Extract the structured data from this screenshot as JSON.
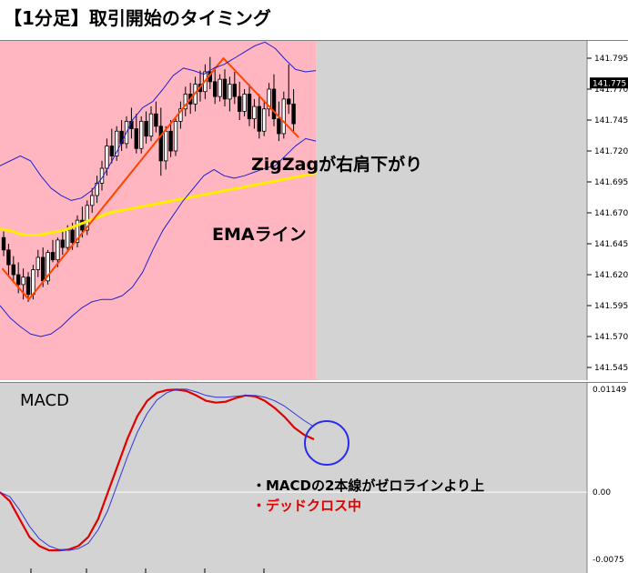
{
  "title": "【1分足】取引開始のタイミング",
  "annotations": {
    "zigzag_label": "ZigZagが右肩下がり",
    "ema_label": "EMAライン",
    "macd_title": "MACD",
    "note_lines_above_zero": "・MACDの2本線がゼロラインより上",
    "note_dead_cross": "・デッドクロス中"
  },
  "colors": {
    "price_highlight": "#ffb6c1",
    "chart_bg": "#d3d3d3",
    "bollinger": "#2020cc",
    "zigzag": "#ff4500",
    "ema": "#ffee00",
    "macd_main": "#e00000",
    "macd_signal": "#3333dd",
    "circle": "#2a2aee",
    "note_red": "#e00000"
  },
  "chart_data": [
    {
      "type": "line",
      "panel": "price",
      "ylim": [
        141.54,
        141.805
      ],
      "y_ticks": [
        "141.795",
        "141.770",
        "141.745",
        "141.720",
        "141.695",
        "141.670",
        "141.645",
        "141.620",
        "141.595",
        "141.570",
        "141.545"
      ],
      "current_price_label": "141.775",
      "current_price": 141.775,
      "bars": 70,
      "highlight_bars": [
        0,
        69
      ],
      "series": [
        {
          "id": "ema",
          "values": [
            141.657,
            141.656,
            141.655,
            141.653,
            141.652,
            141.652,
            141.652,
            141.653,
            141.654,
            141.655,
            141.656,
            141.658,
            141.66,
            141.662,
            141.664,
            141.666,
            141.668,
            141.67,
            141.671,
            141.672,
            141.673,
            141.674,
            141.675,
            141.676,
            141.677,
            141.678,
            141.679,
            141.68,
            141.681,
            141.682,
            141.683,
            141.684,
            141.685,
            141.686,
            141.687,
            141.688,
            141.689,
            141.69,
            141.691,
            141.692,
            141.693,
            141.694,
            141.695,
            141.696,
            141.697,
            141.698,
            141.699,
            141.7,
            141.701,
            141.702
          ]
        },
        {
          "id": "zigzag",
          "x": [
            0,
            6,
            50,
            67
          ],
          "values": [
            141.625,
            141.6,
            141.795,
            141.731
          ]
        },
        {
          "id": "bb_upper",
          "values": [
            141.708,
            141.712,
            141.716,
            141.712,
            141.7,
            141.69,
            141.684,
            141.68,
            141.682,
            141.688,
            141.698,
            141.712,
            141.728,
            141.745,
            141.755,
            141.76,
            141.77,
            141.781,
            141.787,
            141.785,
            141.782,
            141.787,
            141.79,
            141.795,
            141.8,
            141.805,
            141.808,
            141.803,
            141.794,
            141.786,
            141.784,
            141.785
          ]
        },
        {
          "id": "bb_lower",
          "values": [
            141.595,
            141.585,
            141.578,
            141.572,
            141.57,
            141.572,
            141.578,
            141.586,
            141.593,
            141.598,
            141.6,
            141.6,
            141.603,
            141.61,
            141.622,
            141.64,
            141.656,
            141.668,
            141.68,
            141.69,
            141.7,
            141.705,
            141.7,
            141.698,
            141.7,
            141.703,
            141.706,
            141.708,
            141.716,
            141.724,
            141.73,
            141.728
          ]
        }
      ],
      "candles": [
        [
          141.65,
          141.655,
          141.635,
          141.64
        ],
        [
          141.64,
          141.645,
          141.62,
          141.628
        ],
        [
          141.628,
          141.635,
          141.615,
          141.62
        ],
        [
          141.62,
          141.63,
          141.605,
          141.612
        ],
        [
          141.612,
          141.625,
          141.6,
          141.618
        ],
        [
          141.618,
          141.622,
          141.598,
          141.604
        ],
        [
          141.604,
          141.628,
          141.6,
          141.624
        ],
        [
          141.624,
          141.64,
          141.618,
          141.634
        ],
        [
          141.634,
          141.642,
          141.61,
          141.615
        ],
        [
          141.615,
          141.64,
          141.612,
          141.638
        ],
        [
          141.638,
          141.648,
          141.63,
          141.632
        ],
        [
          141.632,
          141.65,
          141.626,
          141.648
        ],
        [
          141.648,
          141.655,
          141.636,
          141.642
        ],
        [
          141.642,
          141.66,
          141.638,
          141.656
        ],
        [
          141.656,
          141.662,
          141.64,
          141.646
        ],
        [
          141.646,
          141.668,
          141.642,
          141.664
        ],
        [
          141.664,
          141.675,
          141.65,
          141.656
        ],
        [
          141.656,
          141.68,
          141.652,
          141.676
        ],
        [
          141.676,
          141.69,
          141.67,
          141.684
        ],
        [
          141.684,
          141.7,
          141.678,
          141.694
        ],
        [
          141.694,
          141.712,
          141.688,
          141.706
        ],
        [
          141.706,
          141.73,
          141.7,
          141.724
        ],
        [
          141.724,
          141.738,
          141.71,
          141.716
        ],
        [
          141.716,
          141.74,
          141.712,
          141.736
        ],
        [
          141.736,
          141.745,
          141.72,
          141.726
        ],
        [
          141.726,
          141.748,
          141.722,
          141.744
        ],
        [
          141.744,
          141.755,
          141.73,
          141.738
        ],
        [
          141.738,
          141.75,
          141.718,
          141.722
        ],
        [
          141.722,
          141.748,
          141.718,
          141.744
        ],
        [
          141.744,
          141.752,
          141.726,
          141.732
        ],
        [
          141.732,
          141.756,
          141.728,
          141.75
        ],
        [
          141.75,
          141.76,
          141.735,
          141.74
        ],
        [
          141.74,
          141.755,
          141.7,
          141.712
        ],
        [
          141.712,
          141.74,
          141.705,
          141.736
        ],
        [
          141.736,
          141.745,
          141.715,
          141.72
        ],
        [
          141.72,
          141.748,
          141.716,
          141.744
        ],
        [
          141.744,
          141.76,
          141.738,
          141.754
        ],
        [
          141.754,
          141.772,
          141.748,
          141.766
        ],
        [
          141.766,
          141.775,
          141.75,
          141.758
        ],
        [
          141.758,
          141.78,
          141.752,
          141.774
        ],
        [
          141.774,
          141.785,
          141.76,
          141.768
        ],
        [
          141.768,
          141.79,
          141.762,
          141.784
        ],
        [
          141.784,
          141.796,
          141.77,
          141.776
        ],
        [
          141.776,
          141.788,
          141.758,
          141.764
        ],
        [
          141.764,
          141.782,
          141.76,
          141.778
        ],
        [
          141.778,
          141.786,
          141.756,
          141.762
        ],
        [
          141.762,
          141.78,
          141.752,
          141.774
        ],
        [
          141.774,
          141.784,
          141.758,
          141.764
        ],
        [
          141.764,
          141.776,
          141.745,
          141.752
        ],
        [
          141.752,
          141.77,
          141.748,
          141.766
        ],
        [
          141.766,
          141.774,
          141.74,
          141.746
        ],
        [
          141.746,
          141.762,
          141.738,
          141.756
        ],
        [
          141.756,
          141.766,
          141.73,
          141.736
        ],
        [
          141.736,
          141.76,
          141.732,
          141.754
        ],
        [
          141.754,
          141.775,
          141.748,
          141.77
        ],
        [
          141.77,
          141.782,
          141.74,
          141.746
        ],
        [
          141.746,
          141.76,
          141.728,
          141.734
        ],
        [
          141.734,
          141.768,
          141.73,
          141.762
        ],
        [
          141.762,
          141.79,
          141.75,
          141.758
        ],
        [
          141.758,
          141.77,
          141.735,
          141.742
        ]
      ]
    },
    {
      "type": "line",
      "panel": "macd",
      "title": "MACD",
      "ylim": [
        -0.0075,
        0.01149
      ],
      "y_ticks": [
        "0.01149",
        "0.00",
        "-0.0075"
      ],
      "zero_line": 0.0,
      "series": [
        {
          "id": "macd_main",
          "values": [
            0.0,
            -0.001,
            -0.003,
            -0.005,
            -0.006,
            -0.0065,
            -0.0065,
            -0.0064,
            -0.006,
            -0.005,
            -0.003,
            0.0,
            0.003,
            0.006,
            0.0085,
            0.0102,
            0.0111,
            0.0114,
            0.01145,
            0.0113,
            0.0108,
            0.0102,
            0.01,
            0.0101,
            0.0105,
            0.0108,
            0.0107,
            0.0102,
            0.0094,
            0.0084,
            0.0072,
            0.0064,
            0.0059
          ]
        },
        {
          "id": "macd_signal",
          "values": [
            0.0,
            -0.0005,
            -0.002,
            -0.0038,
            -0.0052,
            -0.006,
            -0.0064,
            -0.0065,
            -0.0063,
            -0.0057,
            -0.0042,
            -0.002,
            0.001,
            0.004,
            0.0067,
            0.0088,
            0.0103,
            0.0111,
            0.0115,
            0.0115,
            0.0112,
            0.0108,
            0.0106,
            0.0106,
            0.0107,
            0.0108,
            0.0108,
            0.0106,
            0.0102,
            0.0096,
            0.0088,
            0.008,
            0.0073
          ]
        }
      ]
    }
  ]
}
